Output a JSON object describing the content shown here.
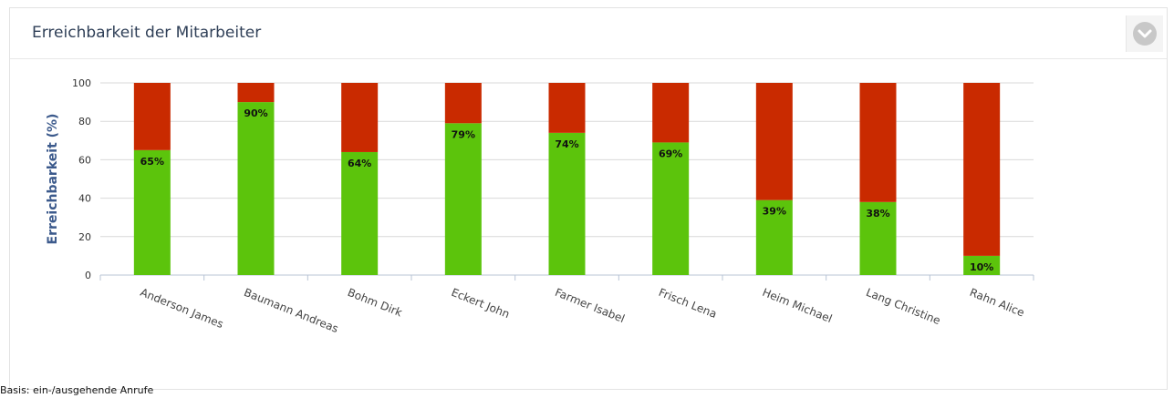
{
  "panel": {
    "title": "Erreichbarkeit der Mitarbeiter",
    "toggle_icon": "chevron-down-circle-icon"
  },
  "footnote": "Basis: ein-/ausgehende Anrufe",
  "colors": {
    "reached": "#5cc40c",
    "not_reached": "#c92a00",
    "axis_title": "#3c5a8c"
  },
  "chart_data": {
    "type": "bar",
    "stacked": true,
    "categories": [
      "Anderson James",
      "Baumann Andreas",
      "Bohm Dirk",
      "Eckert John",
      "Farmer Isabel",
      "Frisch Lena",
      "Heim Michael",
      "Lang Christine",
      "Rahn Alice"
    ],
    "series": [
      {
        "color": "#5cc40c",
        "values": [
          65,
          90,
          64,
          79,
          74,
          69,
          39,
          38,
          10
        ]
      },
      {
        "color": "#c92a00",
        "values": [
          35,
          10,
          36,
          21,
          26,
          31,
          61,
          62,
          90
        ]
      }
    ],
    "data_labels": [
      "65%",
      "90%",
      "64%",
      "79%",
      "74%",
      "69%",
      "39%",
      "38%",
      "10%"
    ],
    "ylabel": "Erreichbarkeit (%)",
    "ylim": [
      0,
      100
    ],
    "yticks": [
      0,
      20,
      40,
      60,
      80,
      100
    ],
    "grid": true
  }
}
